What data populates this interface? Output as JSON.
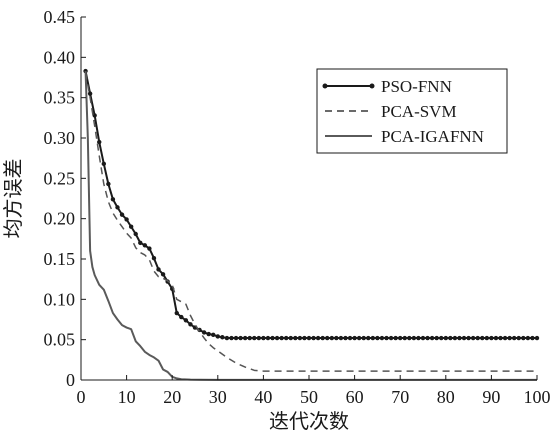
{
  "chart_data": {
    "type": "line",
    "title": "",
    "xlabel": "迭代次数",
    "ylabel": "均方误差",
    "xlim": [
      0,
      100
    ],
    "ylim": [
      0,
      0.45
    ],
    "xticks": [
      0,
      10,
      20,
      30,
      40,
      50,
      60,
      70,
      80,
      90,
      100
    ],
    "yticks": [
      0,
      0.05,
      0.1,
      0.15,
      0.2,
      0.25,
      0.3,
      0.35,
      0.4,
      0.45
    ],
    "xtick_labels": [
      "0",
      "10",
      "20",
      "30",
      "40",
      "50",
      "60",
      "70",
      "80",
      "90",
      "100"
    ],
    "ytick_labels": [
      "0",
      "0.05",
      "0.10",
      "0.15",
      "0.20",
      "0.25",
      "0.30",
      "0.35",
      "0.40",
      "0.45"
    ],
    "grid": false,
    "legend_position": "top-right",
    "series": [
      {
        "name": "PSO-FNN",
        "style": "solid-marker",
        "color": "#1a1a1a",
        "x": [
          1,
          2,
          3,
          4,
          5,
          6,
          7,
          8,
          9,
          10,
          11,
          12,
          13,
          14,
          15,
          16,
          17,
          18,
          19,
          20,
          21,
          22,
          23,
          24,
          25,
          26,
          27,
          28,
          29,
          30,
          31,
          32,
          33,
          34,
          35,
          36,
          37,
          38,
          39,
          40,
          41,
          42,
          43,
          44,
          45,
          46,
          47,
          48,
          49,
          50,
          51,
          52,
          53,
          54,
          55,
          56,
          57,
          58,
          59,
          60,
          61,
          62,
          63,
          64,
          65,
          66,
          67,
          68,
          69,
          70,
          71,
          72,
          73,
          74,
          75,
          76,
          77,
          78,
          79,
          80,
          81,
          82,
          83,
          84,
          85,
          86,
          87,
          88,
          89,
          90,
          91,
          92,
          93,
          94,
          95,
          96,
          97,
          98,
          99,
          100
        ],
        "y": [
          0.383,
          0.355,
          0.328,
          0.295,
          0.268,
          0.243,
          0.224,
          0.214,
          0.205,
          0.199,
          0.19,
          0.181,
          0.17,
          0.167,
          0.163,
          0.151,
          0.137,
          0.131,
          0.122,
          0.113,
          0.083,
          0.078,
          0.074,
          0.069,
          0.065,
          0.062,
          0.059,
          0.057,
          0.056,
          0.054,
          0.053,
          0.052,
          0.052,
          0.052,
          0.052,
          0.052,
          0.052,
          0.052,
          0.052,
          0.052,
          0.052,
          0.052,
          0.052,
          0.052,
          0.052,
          0.052,
          0.052,
          0.052,
          0.052,
          0.052,
          0.052,
          0.052,
          0.052,
          0.052,
          0.052,
          0.052,
          0.052,
          0.052,
          0.052,
          0.052,
          0.052,
          0.052,
          0.052,
          0.052,
          0.052,
          0.052,
          0.052,
          0.052,
          0.052,
          0.052,
          0.052,
          0.052,
          0.052,
          0.052,
          0.052,
          0.052,
          0.052,
          0.052,
          0.052,
          0.052,
          0.052,
          0.052,
          0.052,
          0.052,
          0.052,
          0.052,
          0.052,
          0.052,
          0.052,
          0.052,
          0.052,
          0.052,
          0.052,
          0.052,
          0.052,
          0.052,
          0.052,
          0.052,
          0.052,
          0.052
        ]
      },
      {
        "name": "PCA-SVM",
        "style": "dashed",
        "color": "#555555",
        "x": [
          1,
          2,
          3,
          4,
          5,
          6,
          7,
          8,
          9,
          10,
          11,
          12,
          13,
          14,
          15,
          16,
          17,
          18,
          19,
          20,
          21,
          22,
          23,
          24,
          25,
          26,
          27,
          28,
          29,
          30,
          32,
          34,
          36,
          38,
          40,
          45,
          50,
          60,
          70,
          80,
          90,
          100
        ],
        "y": [
          0.381,
          0.35,
          0.315,
          0.278,
          0.243,
          0.221,
          0.207,
          0.198,
          0.19,
          0.182,
          0.176,
          0.164,
          0.158,
          0.155,
          0.149,
          0.135,
          0.128,
          0.126,
          0.123,
          0.118,
          0.1,
          0.097,
          0.094,
          0.08,
          0.069,
          0.06,
          0.052,
          0.045,
          0.04,
          0.036,
          0.028,
          0.021,
          0.016,
          0.012,
          0.011,
          0.011,
          0.011,
          0.011,
          0.011,
          0.011,
          0.011,
          0.011
        ]
      },
      {
        "name": "PCA-IGAFNN",
        "style": "solid",
        "color": "#5a5a5a",
        "x": [
          1,
          1.5,
          2,
          2.5,
          3,
          4,
          5,
          6,
          7,
          8,
          9,
          10,
          11,
          12,
          13,
          14,
          15,
          16,
          17,
          18,
          19,
          20,
          21,
          22,
          24,
          26,
          30,
          40,
          50,
          60,
          70,
          80,
          90,
          100
        ],
        "y": [
          0.383,
          0.3,
          0.16,
          0.14,
          0.13,
          0.118,
          0.112,
          0.098,
          0.083,
          0.075,
          0.068,
          0.065,
          0.063,
          0.048,
          0.042,
          0.035,
          0.031,
          0.028,
          0.024,
          0.013,
          0.01,
          0.004,
          0.002,
          0.001,
          0.0005,
          0.0003,
          0.0002,
          0.0002,
          0.0002,
          0.0002,
          0.0002,
          0.0002,
          0.0002,
          0.0002
        ]
      }
    ]
  }
}
